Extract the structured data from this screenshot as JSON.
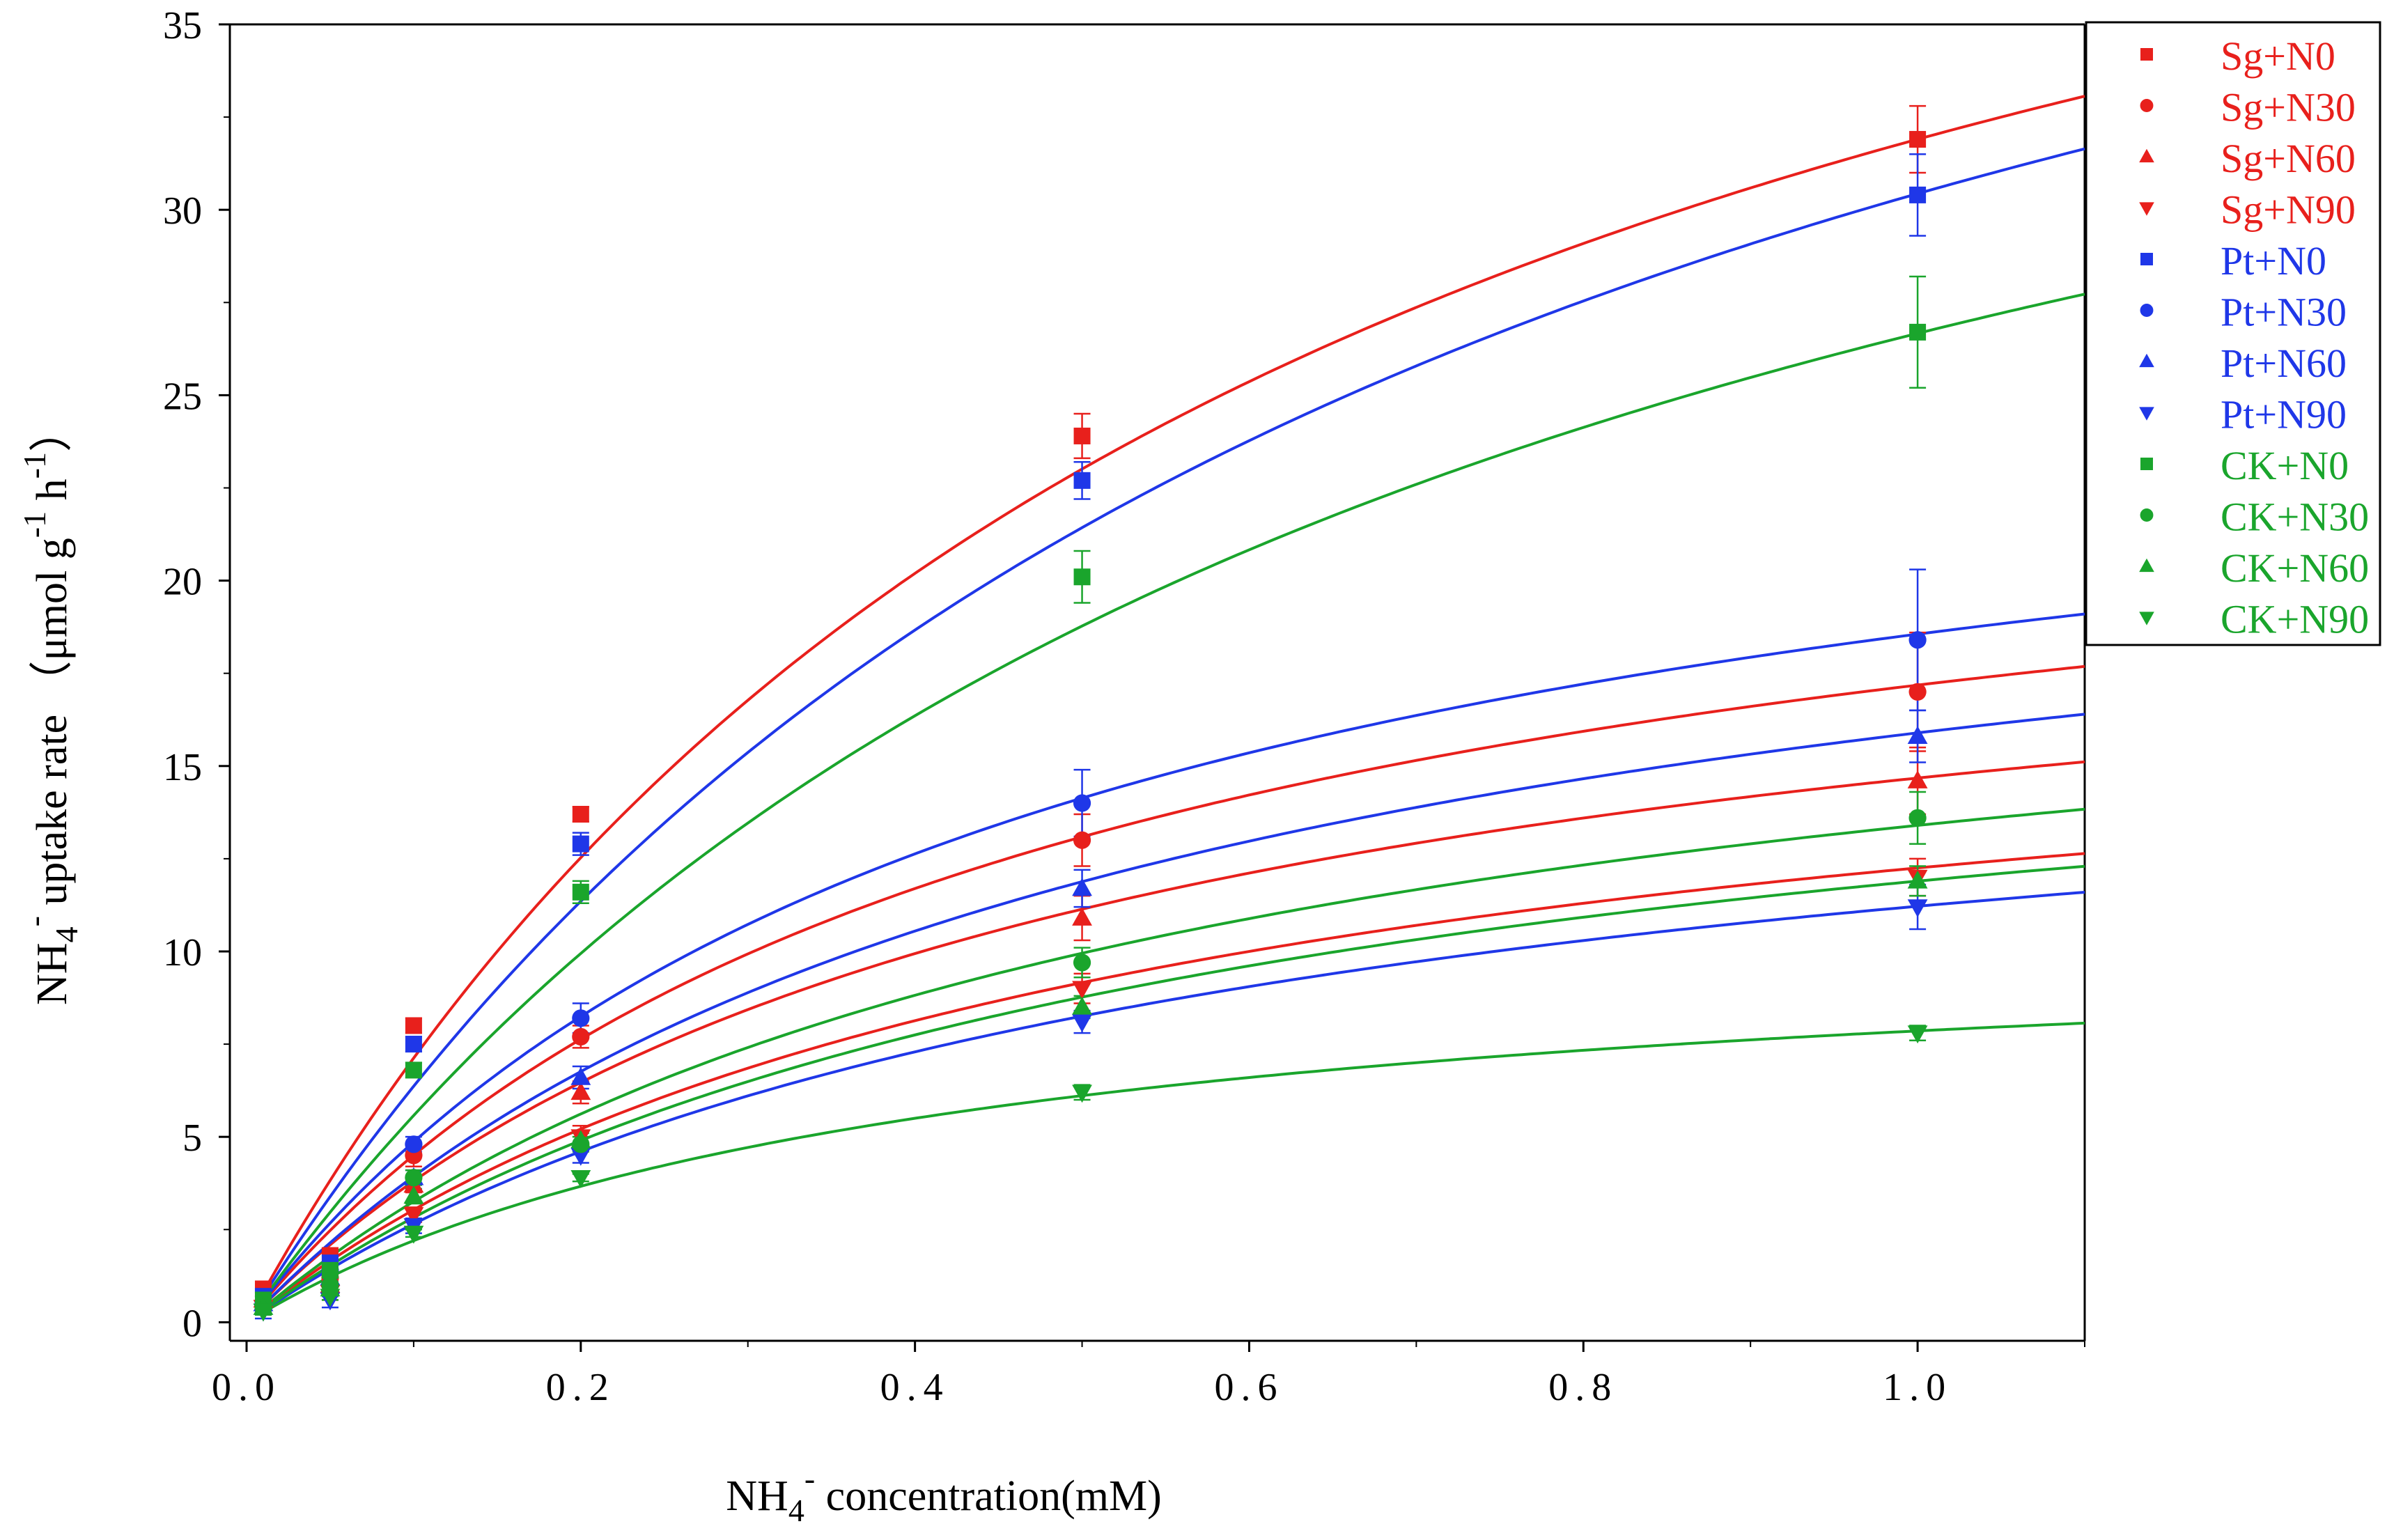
{
  "chart_data": {
    "type": "scatter",
    "title": "",
    "xlabel": {
      "prefix": "NH",
      "sub": "4",
      "sup": "-",
      "suffix": " concentration(mM)"
    },
    "ylabel": {
      "prefix": "NH",
      "sub": "4",
      "sup": "-",
      "middle": " uptake rate （μmol g",
      "sup2": "-1",
      "middle2": " h",
      "sup3": "-1",
      "suffix": "）"
    },
    "xlim": [
      -0.01,
      1.1
    ],
    "ylim": [
      -0.5,
      35
    ],
    "xticks": [
      0.0,
      0.2,
      0.4,
      0.6,
      0.8,
      1.0
    ],
    "xtick_labels": [
      "0.0",
      "0.2",
      "0.4",
      "0.6",
      "0.8",
      "1.0"
    ],
    "yticks": [
      0,
      5,
      10,
      15,
      20,
      25,
      30,
      35
    ],
    "ytick_labels": [
      "0",
      "5",
      "10",
      "15",
      "20",
      "25",
      "30",
      "35"
    ],
    "grid": false,
    "legend_position": "top-right",
    "x": [
      0.01,
      0.05,
      0.1,
      0.2,
      0.5,
      1.0
    ],
    "series": [
      {
        "name": "Sg+N0",
        "color": "#e8201c",
        "marker": "square",
        "values": [
          0.9,
          1.8,
          8.0,
          13.7,
          23.9,
          31.9
        ],
        "errors": [
          0.2,
          0.2,
          0.2,
          0.2,
          0.6,
          0.9
        ],
        "fit": {
          "vmax": 52.0,
          "km": 0.63
        }
      },
      {
        "name": "Sg+N30",
        "color": "#e8201c",
        "marker": "circle",
        "values": [
          0.5,
          1.2,
          4.5,
          7.7,
          13.0,
          17.0
        ],
        "errors": [
          0.2,
          0.2,
          0.3,
          0.3,
          0.7,
          1.6
        ],
        "fit": {
          "vmax": 25.0,
          "km": 0.455
        }
      },
      {
        "name": "Sg+N60",
        "color": "#e8201c",
        "marker": "triangle-up",
        "values": [
          0.6,
          1.0,
          3.7,
          6.2,
          10.9,
          14.6
        ],
        "errors": [
          0.2,
          0.2,
          0.2,
          0.3,
          0.6,
          0.9
        ],
        "fit": {
          "vmax": 21.5,
          "km": 0.465
        }
      },
      {
        "name": "Sg+N90",
        "color": "#e8201c",
        "marker": "triangle-down",
        "values": [
          0.4,
          0.8,
          2.9,
          5.0,
          9.0,
          12.0
        ],
        "errors": [
          0.2,
          0.2,
          0.2,
          0.3,
          0.4,
          0.5
        ],
        "fit": {
          "vmax": 18.5,
          "km": 0.51
        }
      },
      {
        "name": "Pt+N0",
        "color": "#1f37e8",
        "marker": "square",
        "values": [
          0.7,
          1.6,
          7.5,
          12.9,
          22.7,
          30.4
        ],
        "errors": [
          0.2,
          0.2,
          0.2,
          0.3,
          0.5,
          1.1
        ],
        "fit": {
          "vmax": 52.5,
          "km": 0.725
        }
      },
      {
        "name": "Pt+N30",
        "color": "#1f37e8",
        "marker": "circle",
        "values": [
          0.5,
          1.4,
          4.8,
          8.2,
          14.0,
          18.4
        ],
        "errors": [
          0.2,
          0.2,
          0.2,
          0.4,
          0.9,
          1.9
        ],
        "fit": {
          "vmax": 27.0,
          "km": 0.455
        }
      },
      {
        "name": "Pt+N60",
        "color": "#1f37e8",
        "marker": "triangle-up",
        "values": [
          0.5,
          1.2,
          3.9,
          6.6,
          11.7,
          15.8
        ],
        "errors": [
          0.2,
          0.2,
          0.2,
          0.3,
          0.5,
          0.7
        ],
        "fit": {
          "vmax": 24.0,
          "km": 0.51
        }
      },
      {
        "name": "Pt+N90",
        "color": "#1f37e8",
        "marker": "triangle-down",
        "values": [
          0.3,
          0.6,
          2.6,
          4.5,
          8.1,
          11.2
        ],
        "errors": [
          0.2,
          0.2,
          0.2,
          0.2,
          0.3,
          0.6
        ],
        "fit": {
          "vmax": 17.5,
          "km": 0.56
        }
      },
      {
        "name": "CK+N0",
        "color": "#1aa52c",
        "marker": "square",
        "values": [
          0.6,
          1.4,
          6.8,
          11.6,
          20.1,
          26.7
        ],
        "errors": [
          0.2,
          0.2,
          0.2,
          0.3,
          0.7,
          1.5
        ],
        "fit": {
          "vmax": 46.0,
          "km": 0.725
        }
      },
      {
        "name": "CK+N30",
        "color": "#1aa52c",
        "marker": "circle",
        "values": [
          0.4,
          1.0,
          3.9,
          4.8,
          9.7,
          13.6
        ],
        "errors": [
          0.2,
          0.2,
          0.2,
          0.2,
          0.4,
          0.7
        ],
        "fit": {
          "vmax": 20.5,
          "km": 0.53
        }
      },
      {
        "name": "CK+N60",
        "color": "#1aa52c",
        "marker": "triangle-up",
        "values": [
          0.4,
          0.9,
          3.4,
          4.9,
          8.5,
          11.9
        ],
        "errors": [
          0.2,
          0.2,
          0.2,
          0.2,
          0.3,
          0.4
        ],
        "fit": {
          "vmax": 18.5,
          "km": 0.555
        }
      },
      {
        "name": "CK+N90",
        "color": "#1aa52c",
        "marker": "triangle-down",
        "values": [
          0.3,
          0.7,
          2.4,
          3.9,
          6.2,
          7.8
        ],
        "errors": [
          0.1,
          0.1,
          0.1,
          0.1,
          0.2,
          0.2
        ],
        "fit": {
          "vmax": 11.0,
          "km": 0.4
        }
      }
    ]
  }
}
